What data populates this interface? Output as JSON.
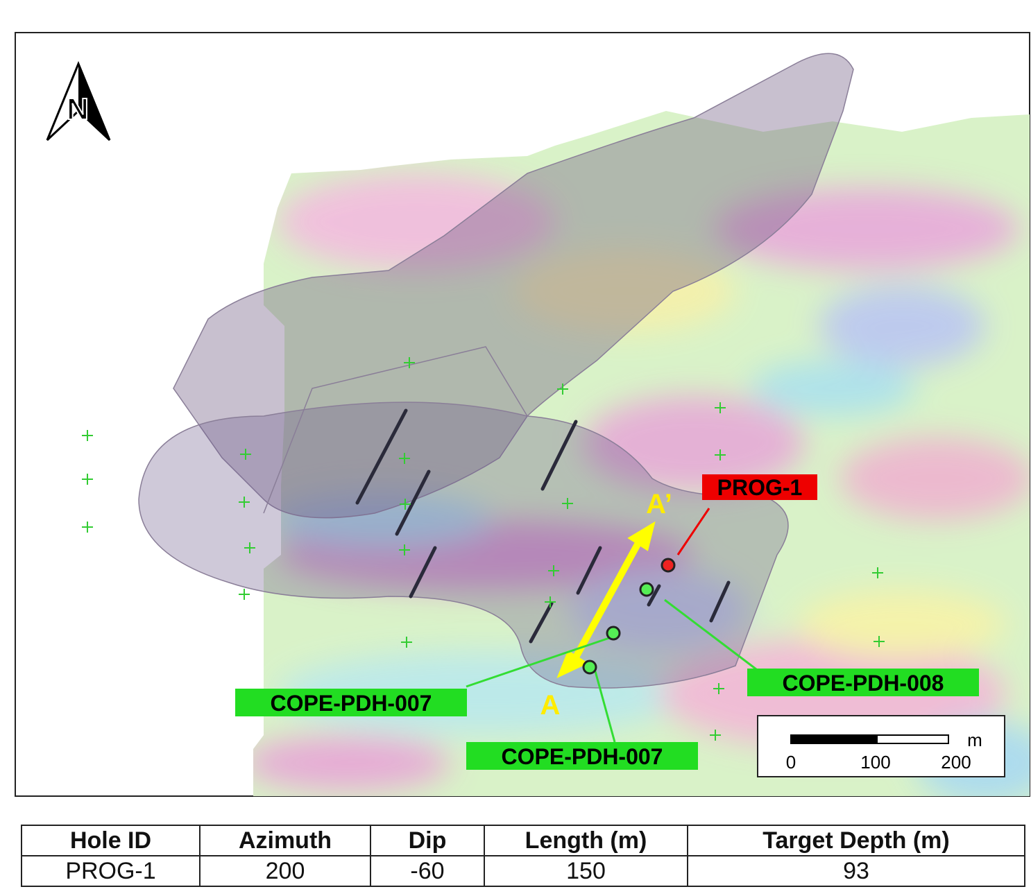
{
  "map": {
    "north_label": "N",
    "section_start": "A",
    "section_end": "A’",
    "hole_labels": [
      "PROG-1",
      "COPE-PDH-008",
      "COPE-PDH-007",
      "COPE-PDH-007"
    ],
    "scale_bar": {
      "unit": "m",
      "ticks": [
        0,
        100,
        200
      ]
    }
  },
  "table": {
    "header": [
      "Hole ID",
      "Azimuth",
      "Dip",
      "Length (m)",
      "Target Depth (m)"
    ],
    "rows": [
      [
        "PROG-1",
        200,
        -60,
        150,
        93
      ]
    ]
  }
}
